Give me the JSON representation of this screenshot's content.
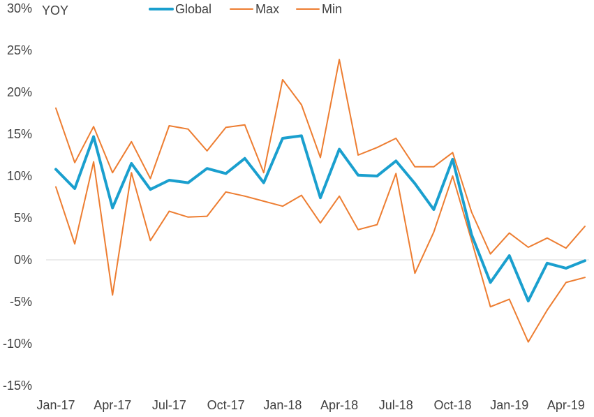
{
  "chart_data": {
    "type": "line",
    "title": "",
    "xlabel": "",
    "ylabel": "",
    "unit_label": "YOY",
    "ylim": [
      -15,
      30
    ],
    "y_ticks": [
      30,
      25,
      20,
      15,
      10,
      5,
      0,
      -5,
      -10,
      -15
    ],
    "y_tick_labels": [
      "30%",
      "25%",
      "20%",
      "15%",
      "10%",
      "5%",
      "0%",
      "-5%",
      "-10%",
      "-15%"
    ],
    "x_tick_labels": [
      "Jan-17",
      "Apr-17",
      "Jul-17",
      "Oct-17",
      "Jan-18",
      "Apr-18",
      "Jul-18",
      "Oct-18",
      "Jan-19",
      "Apr-19"
    ],
    "x_tick_indices": [
      0,
      3,
      6,
      9,
      12,
      15,
      18,
      21,
      24,
      27
    ],
    "categories": [
      "Jan-17",
      "Feb-17",
      "Mar-17",
      "Apr-17",
      "May-17",
      "Jun-17",
      "Jul-17",
      "Aug-17",
      "Sep-17",
      "Oct-17",
      "Nov-17",
      "Dec-17",
      "Jan-18",
      "Feb-18",
      "Mar-18",
      "Apr-18",
      "May-18",
      "Jun-18",
      "Jul-18",
      "Aug-18",
      "Sep-18",
      "Oct-18",
      "Nov-18",
      "Dec-18",
      "Jan-19",
      "Feb-19",
      "Mar-19",
      "Apr-19",
      "May-19"
    ],
    "grid": false,
    "legend_position": "top",
    "series": [
      {
        "name": "Global",
        "color": "#1a9fce",
        "values": [
          10.8,
          8.5,
          14.7,
          6.2,
          11.5,
          8.4,
          9.5,
          9.2,
          10.9,
          10.3,
          12.1,
          9.2,
          14.5,
          14.8,
          7.4,
          13.2,
          10.1,
          10.0,
          11.8,
          9.1,
          6.0,
          12.0,
          3.0,
          -2.7,
          0.5,
          -4.9,
          -0.4,
          -1.0,
          -0.1
        ]
      },
      {
        "name": "Max",
        "color": "#ed7d31",
        "values": [
          18.1,
          11.6,
          15.9,
          10.4,
          14.1,
          9.7,
          16.0,
          15.6,
          13.0,
          15.8,
          16.1,
          10.4,
          21.5,
          18.5,
          12.2,
          23.9,
          12.5,
          13.4,
          14.5,
          11.1,
          11.1,
          12.8,
          5.7,
          0.7,
          3.2,
          1.5,
          2.6,
          1.4,
          4.0
        ]
      },
      {
        "name": "Min",
        "color": "#ed7d31",
        "values": [
          8.7,
          1.9,
          11.7,
          -4.2,
          10.4,
          2.3,
          5.8,
          5.1,
          5.2,
          8.1,
          7.6,
          7.0,
          6.4,
          7.7,
          4.4,
          7.6,
          3.6,
          4.2,
          10.3,
          -1.6,
          3.3,
          10.0,
          2.3,
          -5.6,
          -4.7,
          -9.8,
          -6.0,
          -2.7,
          -2.1
        ]
      }
    ]
  }
}
